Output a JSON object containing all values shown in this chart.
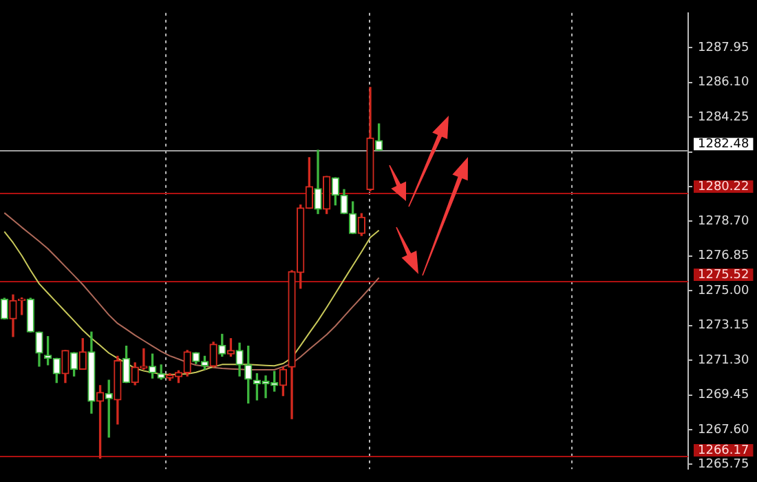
{
  "chart_data": {
    "type": "candlestick",
    "categories": [
      null,
      null,
      null,
      null,
      null,
      null,
      null,
      null,
      null,
      null,
      null,
      null,
      null,
      null,
      null,
      null,
      null,
      null,
      null,
      null,
      null,
      null,
      null,
      null,
      null,
      null,
      null,
      null,
      null,
      null,
      null,
      null,
      null,
      null,
      null,
      null,
      null,
      null,
      null,
      null,
      null,
      null,
      null,
      null,
      null,
      null,
      null,
      null,
      null,
      null,
      null,
      null,
      null,
      null,
      null,
      null,
      null,
      null,
      null,
      null,
      null,
      null,
      null,
      null,
      null,
      null,
      null,
      null,
      null,
      null,
      null,
      null,
      null,
      null,
      null,
      null,
      null,
      null,
      null
    ],
    "ohlc": [
      [
        1274.55,
        1274.6,
        1273.5,
        1273.5
      ],
      [
        1273.5,
        1274.78,
        1272.56,
        1274.48
      ],
      [
        1274.48,
        1274.62,
        1273.73,
        1274.55
      ],
      [
        1274.55,
        1274.6,
        1272.8,
        1272.8
      ],
      [
        1272.8,
        1272.8,
        1270.98,
        1271.68
      ],
      [
        1271.56,
        1272.56,
        1271.05,
        1271.4
      ],
      [
        1271.4,
        1271.4,
        1270.11,
        1270.58
      ],
      [
        1270.58,
        1271.82,
        1270.11,
        1271.82
      ],
      [
        1271.7,
        1271.7,
        1270.46,
        1270.81
      ],
      [
        1270.81,
        1272.45,
        1270.81,
        1271.75
      ],
      [
        1271.75,
        1272.8,
        1268.48,
        1269.11
      ],
      [
        1269.11,
        1269.95,
        1266.08,
        1269.58
      ],
      [
        1269.53,
        1270.23,
        1267.2,
        1269.25
      ],
      [
        1269.18,
        1271.51,
        1267.9,
        1271.28
      ],
      [
        1271.4,
        1272.05,
        1270.11,
        1270.11
      ],
      [
        1270.11,
        1271.16,
        1269.99,
        1270.93
      ],
      [
        1270.88,
        1271.91,
        1270.81,
        1270.98
      ],
      [
        1270.98,
        1271.63,
        1270.35,
        1270.63
      ],
      [
        1270.58,
        1271.05,
        1270.28,
        1270.35
      ],
      [
        1270.35,
        1270.58,
        1270.23,
        1270.51
      ],
      [
        1270.42,
        1270.74,
        1270.11,
        1270.65
      ],
      [
        1270.63,
        1271.82,
        1270.46,
        1271.75
      ],
      [
        1271.7,
        1271.7,
        1271.12,
        1271.23
      ],
      [
        1271.23,
        1271.51,
        1270.81,
        1271.0
      ],
      [
        1270.98,
        1272.26,
        1270.93,
        1272.15
      ],
      [
        1272.1,
        1272.68,
        1271.51,
        1271.63
      ],
      [
        1271.63,
        1272.45,
        1271.51,
        1271.82
      ],
      [
        1271.82,
        1272.21,
        1270.46,
        1271.05
      ],
      [
        1271.05,
        1272.05,
        1269.02,
        1270.28
      ],
      [
        1270.23,
        1270.58,
        1269.18,
        1270.04
      ],
      [
        1270.18,
        1270.46,
        1269.3,
        1270.04
      ],
      [
        1270.11,
        1270.7,
        1269.65,
        1269.95
      ],
      [
        1269.95,
        1270.93,
        1269.41,
        1270.81
      ],
      [
        1270.93,
        1276.07,
        1268.18,
        1276.02
      ],
      [
        1275.97,
        1279.57,
        1275.13,
        1279.41
      ],
      [
        1279.39,
        1282.09,
        1279.39,
        1280.55
      ],
      [
        1280.44,
        1282.49,
        1279.11,
        1279.34
      ],
      [
        1279.34,
        1281.09,
        1279.11,
        1281.09
      ],
      [
        1281.02,
        1281.02,
        1279.57,
        1280.09
      ],
      [
        1280.09,
        1280.39,
        1279.11,
        1279.11
      ],
      [
        1279.11,
        1279.74,
        1278.05,
        1278.05
      ],
      [
        1278.05,
        1279.11,
        1277.94,
        1278.92
      ],
      [
        1280.39,
        1285.83,
        1280.32,
        1283.14
      ],
      [
        1283.0,
        1283.89,
        1282.49,
        1282.49
      ],
      null,
      null,
      null,
      null,
      null,
      null,
      null,
      null,
      null,
      null,
      null,
      null,
      null,
      null,
      null,
      null,
      null,
      null,
      null,
      null,
      null,
      null,
      null,
      null,
      null,
      null,
      null,
      null,
      null,
      null,
      null,
      null,
      null,
      null,
      null
    ],
    "colors": [
      "#3fb83f",
      "#d42a1f",
      "#d42a1f",
      "#3fb83f",
      "#3fb83f",
      "#3fb83f",
      "#3fb83f",
      "#d42a1f",
      "#3fb83f",
      "#d42a1f",
      "#3fb83f",
      "#d42a1f",
      "#3fb83f",
      "#d42a1f",
      "#3fb83f",
      "#d42a1f",
      "#d42a1f",
      "#3fb83f",
      "#3fb83f",
      "#d42a1f",
      "#d42a1f",
      "#d42a1f",
      "#3fb83f",
      "#3fb83f",
      "#d42a1f",
      "#3fb83f",
      "#d42a1f",
      "#3fb83f",
      "#3fb83f",
      "#3fb83f",
      "#3fb83f",
      "#3fb83f",
      "#d42a1f",
      "#d42a1f",
      "#d42a1f",
      "#d42a1f",
      "#3fb83f",
      "#d42a1f",
      "#3fb83f",
      "#3fb83f",
      "#3fb83f",
      "#d42a1f",
      "#d42a1f",
      "#3fb83f",
      null,
      null,
      null,
      null,
      null,
      null,
      null,
      null,
      null,
      null,
      null,
      null,
      null,
      null,
      null,
      null,
      null,
      null,
      null,
      null,
      null,
      null,
      null,
      null,
      null,
      null,
      null,
      null,
      null,
      null,
      null,
      null,
      null,
      null,
      null
    ],
    "series": [
      {
        "type": "line",
        "color": "#c9c95a",
        "values": [
          1278.15,
          1277.56,
          1276.87,
          1276.09,
          1275.37,
          1274.87,
          1274.38,
          1273.89,
          1273.4,
          1272.9,
          1272.47,
          1272.08,
          1271.68,
          1271.4,
          1271.14,
          1270.87,
          1270.73,
          1270.64,
          1270.55,
          1270.53,
          1270.55,
          1270.57,
          1270.65,
          1270.8,
          1270.95,
          1271.07,
          1271.07,
          1271.07,
          1271.07,
          1271.05,
          1271.02,
          1271.0,
          1271.12,
          1271.43,
          1272.08,
          1272.75,
          1273.4,
          1274.11,
          1274.85,
          1275.6,
          1276.34,
          1277.07,
          1277.83,
          1278.22,
          null,
          null,
          null,
          null,
          null,
          null,
          null,
          null,
          null,
          null,
          null,
          null,
          null,
          null,
          null,
          null,
          null,
          null,
          null,
          null,
          null,
          null,
          null,
          null,
          null,
          null,
          null,
          null,
          null,
          null,
          null,
          null,
          null,
          null,
          null
        ]
      },
      {
        "type": "line",
        "color": "#b06a5a",
        "values": [
          1279.15,
          1278.77,
          1278.38,
          1278.01,
          1277.63,
          1277.24,
          1276.77,
          1276.29,
          1275.81,
          1275.33,
          1274.79,
          1274.25,
          1273.71,
          1273.26,
          1272.95,
          1272.63,
          1272.34,
          1272.05,
          1271.77,
          1271.53,
          1271.36,
          1271.18,
          1271.04,
          1270.98,
          1270.91,
          1270.86,
          1270.84,
          1270.82,
          1270.79,
          1270.79,
          1270.79,
          1270.79,
          1270.95,
          1271.12,
          1271.48,
          1271.88,
          1272.27,
          1272.66,
          1273.12,
          1273.64,
          1274.15,
          1274.65,
          1275.17,
          1275.69,
          null,
          null,
          null,
          null,
          null,
          null,
          null,
          null,
          null,
          null,
          null,
          null,
          null,
          null,
          null,
          null,
          null,
          null,
          null,
          null,
          null,
          null,
          null,
          null,
          null,
          null,
          null,
          null,
          null,
          null,
          null,
          null,
          null,
          null,
          null
        ]
      }
    ],
    "ylim": [
      1265.5,
      1289.8
    ],
    "yticks": [
      1265.75,
      {
        "value": 1267.6,
        "label": "1267.60"
      },
      1269.45,
      {
        "value": 1271.3,
        "label": "1271.30"
      },
      1273.15,
      {
        "value": 1275.0,
        "label": "1275.00"
      },
      1276.85,
      {
        "value": 1278.7,
        "label": "1278.70"
      },
      {
        "value": 1280.55,
        "label": null
      },
      {
        "value": 1282.4,
        "label": null
      },
      1284.25,
      {
        "value": 1286.1,
        "label": "1286.10"
      },
      1287.95
    ],
    "ref_lines": [
      {
        "axis": "y",
        "value": 1282.48,
        "label": "1282.48",
        "color": "#a0a0a0"
      },
      {
        "axis": "y",
        "value": 1280.22,
        "label": "1280.22",
        "color": "#b01010"
      },
      {
        "axis": "y",
        "value": 1275.52,
        "label": "1275.52",
        "color": "#b01010"
      },
      {
        "axis": "y",
        "value": 1266.17,
        "label": "1266.17",
        "color": "#b01010"
      }
    ],
    "grid": "x"
  }
}
